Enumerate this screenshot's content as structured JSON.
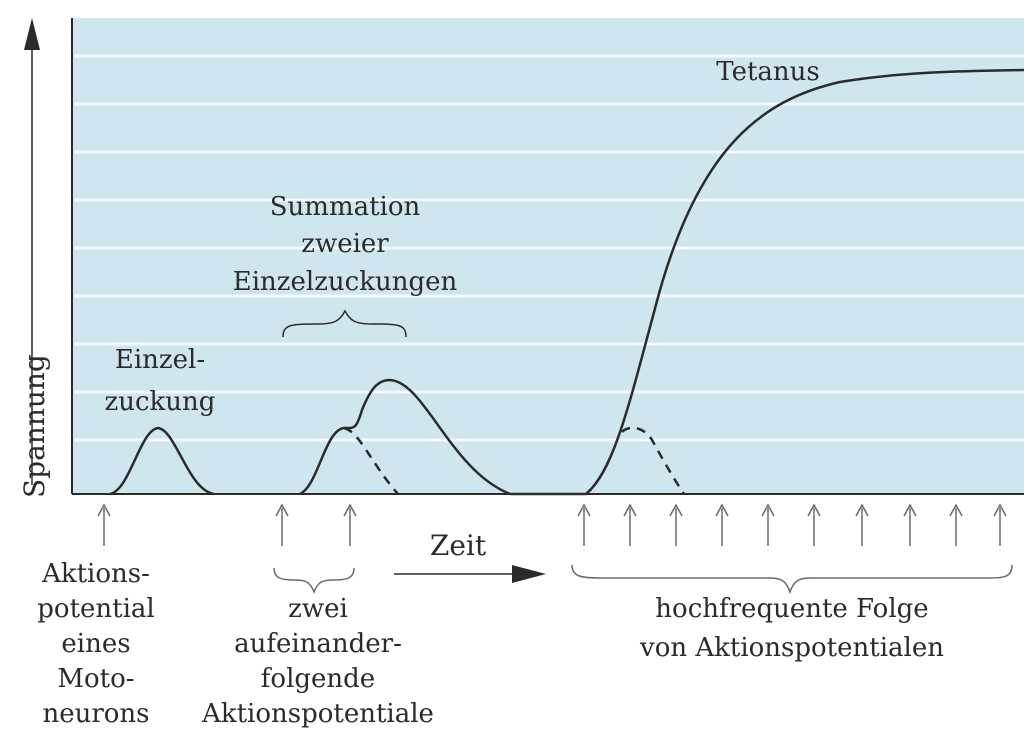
{
  "axes": {
    "y_label": "Spannung",
    "x_label": "Zeit"
  },
  "regions": {
    "single": {
      "curve_label": [
        "Einzel-",
        "zuckung"
      ],
      "stimulus_label": [
        "Aktions-",
        "potential",
        "eines",
        "Moto-",
        "neurons"
      ]
    },
    "summation": {
      "curve_label": [
        "Summation",
        "zweier",
        "Einzelzuckungen"
      ],
      "stimulus_label": [
        "zwei",
        "aufeinander-",
        "folgende",
        "Aktionspotentiale"
      ]
    },
    "tetanus": {
      "curve_label": [
        "Tetanus"
      ],
      "stimulus_label": [
        "hochfrequente Folge",
        "von Aktionspotentialen"
      ]
    }
  },
  "colors": {
    "plot_background": "#cfe6ee",
    "gridline": "#f3f9fb",
    "ink": "#2b2b2b",
    "stimulus_arrow": "#6a6a6a"
  },
  "icons": {
    "y_axis_arrow": "arrow-up-icon",
    "x_axis_arrow": "arrow-right-icon",
    "stimulus_marker": "arrow-up-icon"
  }
}
